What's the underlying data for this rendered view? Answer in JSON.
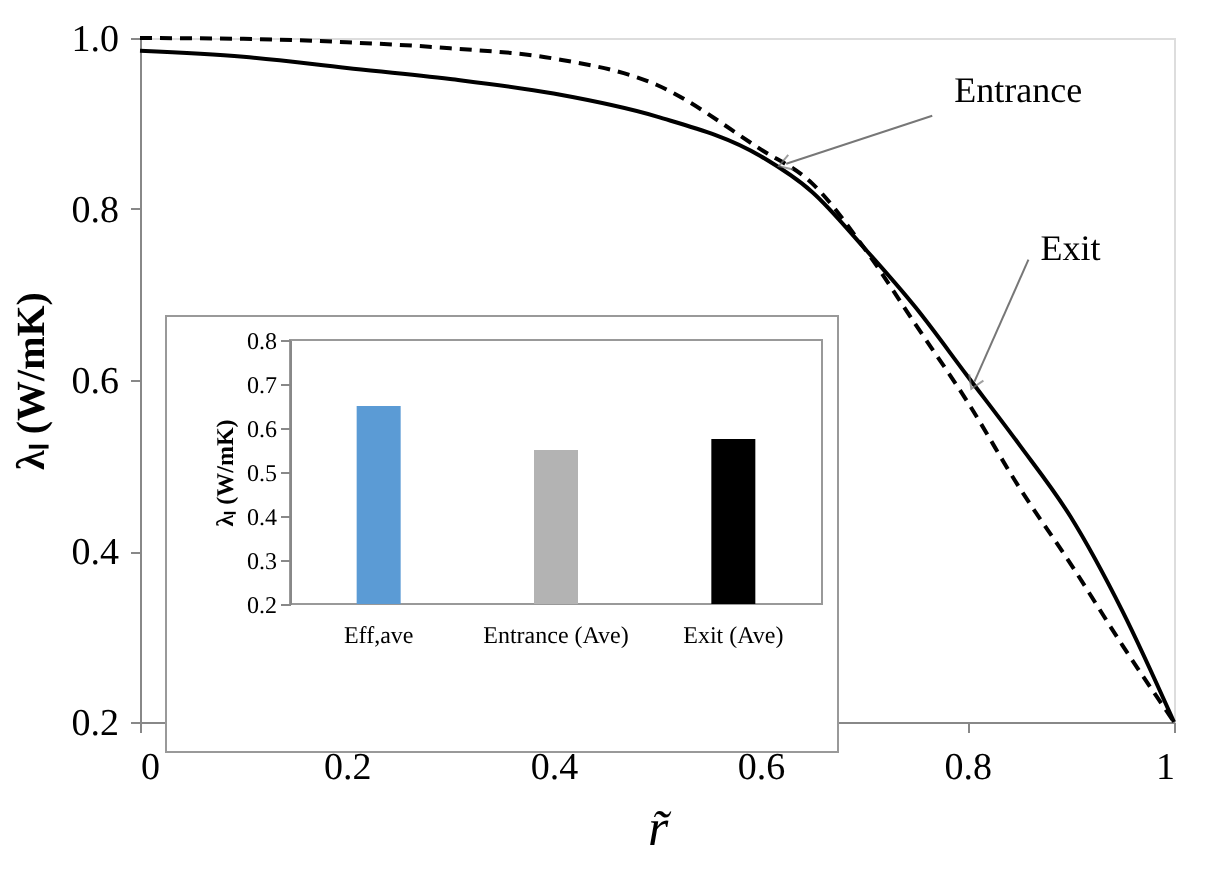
{
  "chart_data": [
    {
      "type": "line",
      "xlabel": "r̃",
      "ylabel": "λₗ (W/mK)",
      "x": [
        0,
        0.1,
        0.2,
        0.3,
        0.4,
        0.5,
        0.6,
        0.65,
        0.7,
        0.75,
        0.8,
        0.85,
        0.9,
        0.95,
        1
      ],
      "series": [
        {
          "color": "#000000",
          "line_style": "dashed",
          "values": [
            1.0,
            0.999,
            0.995,
            0.988,
            0.976,
            0.945,
            0.87,
            0.83,
            0.755,
            0.665,
            0.575,
            0.475,
            0.385,
            0.29,
            0.2
          ]
        },
        {
          "color": "#000000",
          "line_style": "solid",
          "values": [
            0.985,
            0.978,
            0.965,
            0.952,
            0.935,
            0.908,
            0.862,
            0.82,
            0.755,
            0.685,
            0.605,
            0.525,
            0.44,
            0.33,
            0.2
          ]
        }
      ],
      "xlim": [
        0,
        1
      ],
      "ylim": [
        0.2,
        1.0
      ],
      "xticks": [
        0,
        0.2,
        0.4,
        0.6,
        0.8,
        1
      ],
      "yticks": [
        0.2,
        0.4,
        0.6,
        0.8,
        {
          "value": 1.0,
          "label": "1.0"
        }
      ],
      "grid": false,
      "legend": false,
      "annotations": [
        {
          "text": "Entrance",
          "x": 0.625,
          "y": 0.853
        },
        {
          "text": "Exit",
          "x": 0.807,
          "y": 0.598
        }
      ]
    },
    {
      "type": "bar",
      "ylabel": "λₗ (W/mK)",
      "categories": [
        "Eff,ave",
        "Entrance (Ave)",
        "Exit (Ave)"
      ],
      "values": [
        0.65,
        0.55,
        0.575
      ],
      "colors": [
        "#5b9bd5",
        "#b3b3b3",
        "#000000"
      ],
      "ylim": [
        0.2,
        0.8
      ],
      "yticks": [
        0.2,
        0.3,
        0.4,
        0.5,
        0.6,
        0.7,
        0.8
      ],
      "grid": false
    }
  ]
}
